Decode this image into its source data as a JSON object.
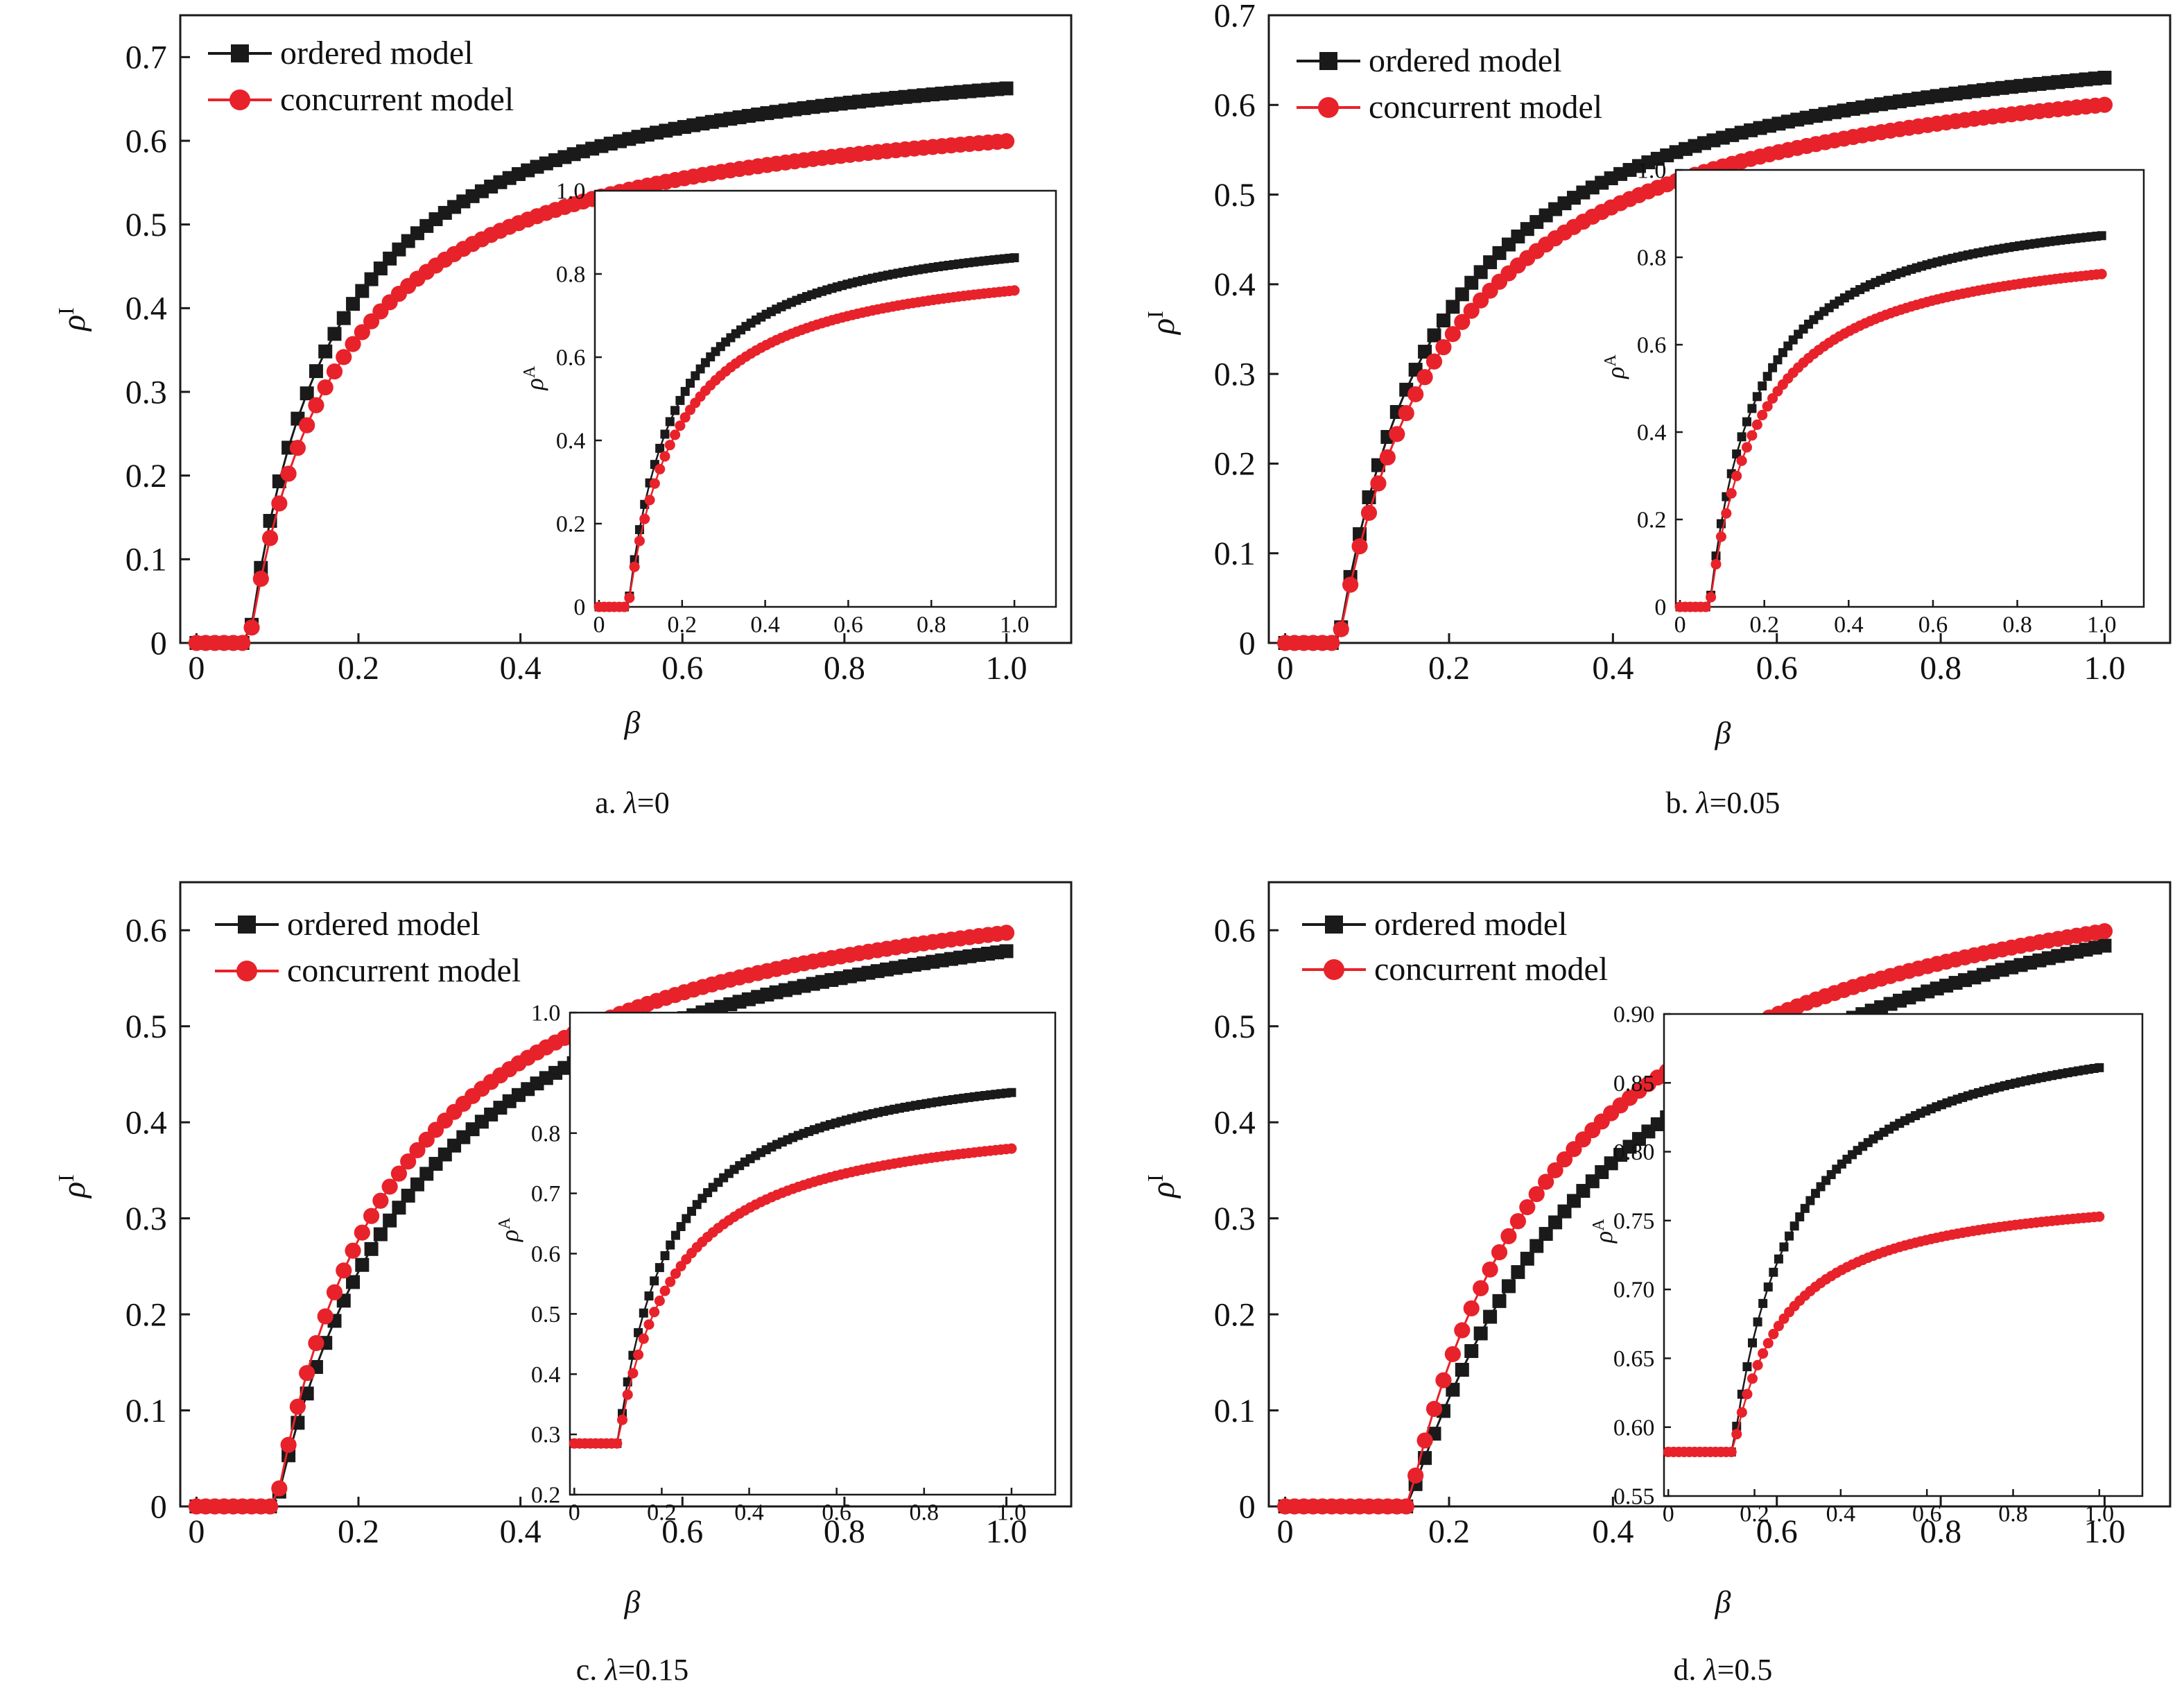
{
  "figure": {
    "colors": {
      "ordered": "#1a1a1a",
      "concurrent": "#e8222a",
      "axis": "#1a1a1a"
    }
  },
  "chart_data": [
    {
      "type": "line",
      "panel_caption": {
        "prefix": "a. ",
        "symbol": "λ",
        "value": "=0"
      },
      "xlabel": "β",
      "ylabel": {
        "base": "ρ",
        "sup": "I"
      },
      "xlim": [
        -0.02,
        1.08
      ],
      "ylim": [
        0,
        0.75
      ],
      "xticks": [
        0,
        0.2,
        0.4,
        0.6,
        0.8,
        1.0
      ],
      "xtick_labels": [
        "0",
        "0.2",
        "0.4",
        "0.6",
        "0.8",
        "1.0"
      ],
      "yticks": [
        0,
        0.1,
        0.2,
        0.3,
        0.4,
        0.5,
        0.6,
        0.7
      ],
      "ytick_labels": [
        "0",
        "0.1",
        "0.2",
        "0.3",
        "0.4",
        "0.5",
        "0.6",
        "0.7"
      ],
      "legend": {
        "position": "top-left",
        "entries": [
          "ordered model",
          "concurrent model"
        ]
      },
      "series": [
        {
          "name": "ordered model",
          "marker": "square",
          "color": "#1a1a1a",
          "bc": 0.065,
          "base": 0,
          "amp": 0.737,
          "shape": 0.105
        },
        {
          "name": "concurrent model",
          "marker": "circle",
          "color": "#e8222a",
          "bc": 0.065,
          "base": 0,
          "amp": 0.672,
          "shape": 0.113
        }
      ],
      "inset": {
        "type": "line",
        "ylabel": {
          "base": "ρ",
          "sup": "A"
        },
        "xlim": [
          -0.01,
          1.1
        ],
        "ylim": [
          0,
          1.0
        ],
        "xticks": [
          0,
          0.2,
          0.4,
          0.6,
          0.8,
          1.0
        ],
        "xtick_labels": [
          "0",
          "0.2",
          "0.4",
          "0.6",
          "0.8",
          "1.0"
        ],
        "yticks": [
          0,
          0.2,
          0.4,
          0.6,
          0.8,
          1.0
        ],
        "ytick_labels": [
          "0",
          "0.2",
          "0.4",
          "0.6",
          "0.8",
          "1.0"
        ],
        "series": [
          {
            "name": "ordered model",
            "marker": "square",
            "color": "#1a1a1a",
            "bc": 0.07,
            "base": 0,
            "amp": 0.94,
            "shape": 0.112
          },
          {
            "name": "concurrent model",
            "marker": "circle",
            "color": "#e8222a",
            "bc": 0.07,
            "base": 0,
            "amp": 0.86,
            "shape": 0.122
          }
        ]
      }
    },
    {
      "type": "line",
      "panel_caption": {
        "prefix": "b. ",
        "symbol": "λ",
        "value": "=0.05"
      },
      "xlabel": "β",
      "ylabel": {
        "base": "ρ",
        "sup": "I"
      },
      "xlim": [
        -0.02,
        1.08
      ],
      "ylim": [
        0,
        0.7
      ],
      "xticks": [
        0,
        0.2,
        0.4,
        0.6,
        0.8,
        1.0
      ],
      "xtick_labels": [
        "0",
        "0.2",
        "0.4",
        "0.6",
        "0.8",
        "1.0"
      ],
      "yticks": [
        0,
        0.1,
        0.2,
        0.3,
        0.4,
        0.5,
        0.6,
        0.7
      ],
      "ytick_labels": [
        "0",
        "0.1",
        "0.2",
        "0.3",
        "0.4",
        "0.5",
        "0.6",
        "0.7"
      ],
      "legend": {
        "position": "top-left",
        "entries": [
          "ordered model",
          "concurrent model"
        ]
      },
      "series": [
        {
          "name": "ordered model",
          "marker": "square",
          "color": "#1a1a1a",
          "bc": 0.065,
          "base": 0,
          "amp": 0.716,
          "shape": 0.127
        },
        {
          "name": "concurrent model",
          "marker": "circle",
          "color": "#e8222a",
          "bc": 0.065,
          "base": 0,
          "amp": 0.69,
          "shape": 0.14
        }
      ],
      "inset": {
        "type": "line",
        "ylabel": {
          "base": "ρ",
          "sup": "A"
        },
        "xlim": [
          -0.01,
          1.1
        ],
        "ylim": [
          0,
          1.0
        ],
        "xticks": [
          0,
          0.2,
          0.4,
          0.6,
          0.8,
          1.0
        ],
        "xtick_labels": [
          "0",
          "0.2",
          "0.4",
          "0.6",
          "0.8",
          "1.0"
        ],
        "yticks": [
          0,
          0.2,
          0.4,
          0.6,
          0.8,
          1.0
        ],
        "ytick_labels": [
          "0",
          "0.2",
          "0.4",
          "0.6",
          "0.8",
          "1.0"
        ],
        "series": [
          {
            "name": "ordered model",
            "marker": "square",
            "color": "#1a1a1a",
            "bc": 0.07,
            "base": 0,
            "amp": 0.95,
            "shape": 0.11
          },
          {
            "name": "concurrent model",
            "marker": "circle",
            "color": "#e8222a",
            "bc": 0.07,
            "base": 0,
            "amp": 0.86,
            "shape": 0.12
          }
        ]
      }
    },
    {
      "type": "line",
      "panel_caption": {
        "prefix": "c. ",
        "symbol": "λ",
        "value": "=0.15"
      },
      "xlabel": "β",
      "ylabel": {
        "base": "ρ",
        "sup": "I"
      },
      "xlim": [
        -0.02,
        1.08
      ],
      "ylim": [
        0,
        0.65
      ],
      "xticks": [
        0,
        0.2,
        0.4,
        0.6,
        0.8,
        1.0
      ],
      "xtick_labels": [
        "0",
        "0.2",
        "0.4",
        "0.6",
        "0.8",
        "1.0"
      ],
      "yticks": [
        0,
        0.1,
        0.2,
        0.3,
        0.4,
        0.5,
        0.6
      ],
      "ytick_labels": [
        "0",
        "0.1",
        "0.2",
        "0.3",
        "0.4",
        "0.5",
        "0.6"
      ],
      "legend": {
        "position": "top-left",
        "entries": [
          "ordered model",
          "concurrent model"
        ]
      },
      "series": [
        {
          "name": "ordered model",
          "marker": "square",
          "color": "#1a1a1a",
          "bc": 0.098,
          "base": 0,
          "amp": 0.7,
          "shape": 0.19
        },
        {
          "name": "concurrent model",
          "marker": "circle",
          "color": "#e8222a",
          "bc": 0.098,
          "base": 0,
          "amp": 0.7,
          "shape": 0.155
        }
      ],
      "inset": {
        "type": "line",
        "ylabel": {
          "base": "ρ",
          "sup": "A"
        },
        "xlim": [
          -0.01,
          1.1
        ],
        "ylim": [
          0.2,
          1.0
        ],
        "xticks": [
          0,
          0.2,
          0.4,
          0.6,
          0.8,
          1.0
        ],
        "xtick_labels": [
          "0",
          "0.2",
          "0.4",
          "0.6",
          "0.8",
          "1.0"
        ],
        "yticks": [
          0.2,
          0.3,
          0.4,
          0.5,
          0.6,
          0.7,
          0.8,
          1.0
        ],
        "ytick_labels": [
          "0.2",
          "0.3",
          "0.4",
          "0.5",
          "0.6",
          "0.7",
          "0.8",
          "1.0"
        ],
        "series": [
          {
            "name": "ordered model",
            "marker": "square",
            "color": "#1a1a1a",
            "bc": 0.1,
            "base": 0.285,
            "amp": 0.66,
            "shape": 0.12
          },
          {
            "name": "concurrent model",
            "marker": "circle",
            "color": "#e8222a",
            "bc": 0.1,
            "base": 0.285,
            "amp": 0.56,
            "shape": 0.13
          }
        ]
      }
    },
    {
      "type": "line",
      "panel_caption": {
        "prefix": "d. ",
        "symbol": "λ",
        "value": "=0.5"
      },
      "xlabel": "β",
      "ylabel": {
        "base": "ρ",
        "sup": "I"
      },
      "xlim": [
        -0.02,
        1.08
      ],
      "ylim": [
        0,
        0.65
      ],
      "xticks": [
        0,
        0.2,
        0.4,
        0.6,
        0.8,
        1.0
      ],
      "xtick_labels": [
        "0",
        "0.2",
        "0.4",
        "0.6",
        "0.8",
        "1.0"
      ],
      "yticks": [
        0,
        0.1,
        0.2,
        0.3,
        0.4,
        0.5,
        0.6
      ],
      "ytick_labels": [
        "0",
        "0.1",
        "0.2",
        "0.3",
        "0.4",
        "0.5",
        "0.6"
      ],
      "legend": {
        "position": "top-left",
        "entries": [
          "ordered model",
          "concurrent model"
        ]
      },
      "series": [
        {
          "name": "ordered model",
          "marker": "square",
          "color": "#1a1a1a",
          "bc": 0.15,
          "base": 0,
          "amp": 0.79,
          "shape": 0.3
        },
        {
          "name": "concurrent model",
          "marker": "circle",
          "color": "#e8222a",
          "bc": 0.15,
          "base": 0,
          "amp": 0.74,
          "shape": 0.2
        }
      ],
      "inset": {
        "type": "line",
        "ylabel": {
          "base": "ρ",
          "sup": "A"
        },
        "xlim": [
          -0.01,
          1.1
        ],
        "ylim": [
          0.55,
          0.9
        ],
        "xticks": [
          0,
          0.2,
          0.4,
          0.6,
          0.8,
          1.0
        ],
        "xtick_labels": [
          "0",
          "0.2",
          "0.4",
          "0.6",
          "0.8",
          "1.0"
        ],
        "yticks": [
          0.55,
          0.6,
          0.65,
          0.7,
          0.75,
          0.8,
          0.85,
          0.9
        ],
        "ytick_labels": [
          "0.55",
          "0.60",
          "0.65",
          "0.70",
          "0.75",
          "0.80",
          "0.85",
          "0.90"
        ],
        "series": [
          {
            "name": "ordered model",
            "marker": "square",
            "color": "#1a1a1a",
            "bc": 0.15,
            "base": 0.582,
            "amp": 0.325,
            "shape": 0.14
          },
          {
            "name": "concurrent model",
            "marker": "circle",
            "color": "#e8222a",
            "bc": 0.15,
            "base": 0.582,
            "amp": 0.195,
            "shape": 0.12
          }
        ]
      }
    }
  ]
}
